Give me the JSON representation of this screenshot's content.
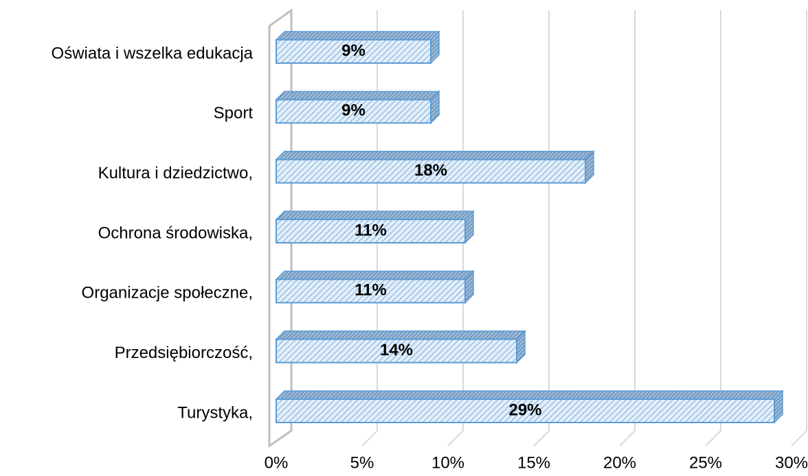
{
  "chart_data": {
    "type": "bar3d_horizontal",
    "categories": [
      "Oświata i wszelka edukacja",
      "Sport",
      "Kultura i dziedzictwo,",
      "Ochrona środowiska,",
      "Organizacje społeczne,",
      "Przedsiębiorczość,",
      "Turystyka,"
    ],
    "values": [
      9,
      9,
      18,
      11,
      11,
      14,
      29
    ],
    "value_labels": [
      "9%",
      "9%",
      "18%",
      "11%",
      "11%",
      "14%",
      "29%"
    ],
    "color": "#5b9bd5",
    "xlim": [
      0,
      30
    ],
    "xticks": [
      {
        "value": 0,
        "label": "0%"
      },
      {
        "value": 5,
        "label": "5%"
      },
      {
        "value": 10,
        "label": "10%"
      },
      {
        "value": 15,
        "label": "15%"
      },
      {
        "value": 20,
        "label": "20%"
      },
      {
        "value": 25,
        "label": "25%"
      },
      {
        "value": 30,
        "label": "30%"
      }
    ],
    "grid": true
  }
}
